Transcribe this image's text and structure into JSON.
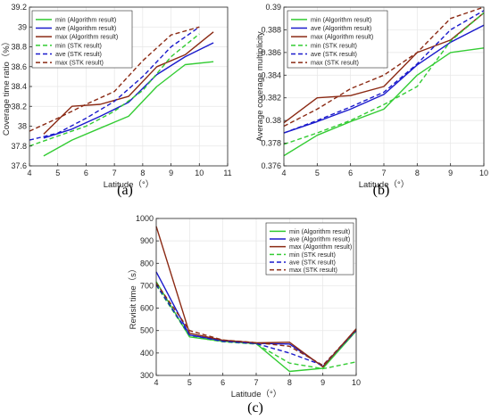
{
  "chart_data": [
    {
      "type": "line",
      "panel_label": "(a)",
      "xlabel": "Latitude（°）",
      "ylabel": "Coverage time ratio（%）",
      "xlim": [
        4,
        11
      ],
      "ylim": [
        37.6,
        39.2
      ],
      "xticks": [
        4,
        5,
        6,
        7,
        8,
        9,
        10,
        11
      ],
      "yticks": [
        37.6,
        37.8,
        38,
        38.2,
        38.4,
        38.6,
        38.8,
        39,
        39.2
      ],
      "grid": true,
      "legend_position": "top-left",
      "series": [
        {
          "name": "min (Algorithm result)",
          "color": "#33cc33",
          "dash": "solid",
          "x": [
            4.5,
            5.5,
            6.5,
            7.5,
            8.5,
            9.5,
            10.5
          ],
          "y": [
            37.7,
            37.86,
            37.98,
            38.1,
            38.4,
            38.62,
            38.65
          ]
        },
        {
          "name": "ave (Algorithm result)",
          "color": "#1a1acc",
          "dash": "solid",
          "x": [
            4.5,
            5.5,
            6.5,
            7.5,
            8.5,
            9.5,
            10.5
          ],
          "y": [
            37.88,
            37.97,
            38.1,
            38.24,
            38.52,
            38.7,
            38.84
          ]
        },
        {
          "name": "max (Algorithm result)",
          "color": "#8b2a14",
          "dash": "solid",
          "x": [
            4.5,
            5.5,
            6.5,
            7.5,
            8.5,
            9.5,
            10.5
          ],
          "y": [
            37.92,
            38.2,
            38.22,
            38.3,
            38.6,
            38.72,
            38.95
          ]
        },
        {
          "name": "min (STK result)",
          "color": "#33cc33",
          "dash": "dashed",
          "x": [
            4.0,
            5.0,
            6.0,
            7.0,
            8.0,
            9.0,
            10.0
          ],
          "y": [
            37.8,
            37.9,
            38.0,
            38.15,
            38.36,
            38.7,
            38.93
          ]
        },
        {
          "name": "ave (STK result)",
          "color": "#1a1acc",
          "dash": "dashed",
          "x": [
            4.0,
            5.0,
            6.0,
            7.0,
            8.0,
            9.0,
            10.0
          ],
          "y": [
            37.86,
            37.93,
            38.08,
            38.25,
            38.5,
            38.8,
            39.0
          ]
        },
        {
          "name": "max (STK result)",
          "color": "#8b2a14",
          "dash": "dashed",
          "x": [
            4.0,
            5.0,
            6.0,
            7.0,
            8.0,
            9.0,
            10.0
          ],
          "y": [
            37.95,
            38.08,
            38.22,
            38.35,
            38.66,
            38.92,
            39.0
          ]
        }
      ]
    },
    {
      "type": "line",
      "panel_label": "(b)",
      "xlabel": "Latitude（°）",
      "ylabel": "Average coverage multiplicity",
      "xlim": [
        4,
        10
      ],
      "ylim": [
        0.376,
        0.39
      ],
      "xticks": [
        4,
        5,
        6,
        7,
        8,
        9,
        10
      ],
      "yticks": [
        0.376,
        0.378,
        0.38,
        0.382,
        0.384,
        0.386,
        0.388,
        0.39
      ],
      "grid": true,
      "legend_position": "top-left",
      "series": [
        {
          "name": "min (Algorithm result)",
          "color": "#33cc33",
          "dash": "solid",
          "x": [
            4,
            5,
            6,
            7,
            8,
            9,
            10
          ],
          "y": [
            0.3769,
            0.3787,
            0.3799,
            0.381,
            0.384,
            0.386,
            0.3864
          ]
        },
        {
          "name": "ave (Algorithm result)",
          "color": "#1a1acc",
          "dash": "solid",
          "x": [
            4,
            5,
            6,
            7,
            8,
            9,
            10
          ],
          "y": [
            0.3789,
            0.3799,
            0.381,
            0.3823,
            0.3849,
            0.3869,
            0.3884
          ]
        },
        {
          "name": "max (Algorithm result)",
          "color": "#8b2a14",
          "dash": "solid",
          "x": [
            4,
            5,
            6,
            7,
            8,
            9,
            10
          ],
          "y": [
            0.3798,
            0.382,
            0.3822,
            0.383,
            0.386,
            0.3871,
            0.3895
          ]
        },
        {
          "name": "min (STK result)",
          "color": "#33cc33",
          "dash": "dashed",
          "x": [
            4,
            5,
            6,
            7,
            8,
            9,
            10
          ],
          "y": [
            0.3779,
            0.3789,
            0.38,
            0.3814,
            0.383,
            0.387,
            0.3895
          ]
        },
        {
          "name": "ave (STK result)",
          "color": "#1a1acc",
          "dash": "dashed",
          "x": [
            4,
            5,
            6,
            7,
            8,
            9,
            10
          ],
          "y": [
            0.3789,
            0.38,
            0.3812,
            0.3825,
            0.385,
            0.388,
            0.3897
          ]
        },
        {
          "name": "max (STK result)",
          "color": "#8b2a14",
          "dash": "dashed",
          "x": [
            4,
            5,
            6,
            7,
            8,
            9,
            10
          ],
          "y": [
            0.3795,
            0.381,
            0.3828,
            0.384,
            0.386,
            0.389,
            0.39
          ]
        }
      ]
    },
    {
      "type": "line",
      "panel_label": "(c)",
      "xlabel": "Latitude（°）",
      "ylabel": "Revisit time（s）",
      "xlim": [
        4,
        10
      ],
      "ylim": [
        300,
        1000
      ],
      "xticks": [
        4,
        5,
        6,
        7,
        8,
        9,
        10
      ],
      "yticks": [
        300,
        400,
        500,
        600,
        700,
        800,
        900,
        1000
      ],
      "grid": true,
      "legend_position": "top-right",
      "series": [
        {
          "name": "min (Algorithm result)",
          "color": "#33cc33",
          "dash": "solid",
          "x": [
            4,
            5,
            6,
            7,
            8,
            9,
            10
          ],
          "y": [
            718,
            472,
            452,
            442,
            318,
            332,
            498
          ]
        },
        {
          "name": "ave (Algorithm result)",
          "color": "#1a1acc",
          "dash": "solid",
          "x": [
            4,
            5,
            6,
            7,
            8,
            9,
            10
          ],
          "y": [
            762,
            480,
            455,
            443,
            440,
            340,
            505
          ]
        },
        {
          "name": "max (Algorithm result)",
          "color": "#8b2a14",
          "dash": "solid",
          "x": [
            4,
            5,
            6,
            7,
            8,
            9,
            10
          ],
          "y": [
            965,
            488,
            457,
            445,
            448,
            338,
            508
          ]
        },
        {
          "name": "min (STK result)",
          "color": "#33cc33",
          "dash": "dashed",
          "x": [
            4,
            5,
            6,
            7,
            8,
            9,
            10
          ],
          "y": [
            702,
            474,
            450,
            440,
            355,
            330,
            360
          ]
        },
        {
          "name": "ave (STK result)",
          "color": "#1a1acc",
          "dash": "dashed",
          "x": [
            4,
            5,
            6,
            7,
            8,
            9,
            10
          ],
          "y": [
            705,
            480,
            452,
            442,
            400,
            345,
            500
          ]
        },
        {
          "name": "max (STK result)",
          "color": "#8b2a14",
          "dash": "dashed",
          "x": [
            4,
            5,
            6,
            7,
            8,
            9,
            10
          ],
          "y": [
            712,
            500,
            458,
            446,
            430,
            345,
            505
          ]
        }
      ]
    }
  ]
}
